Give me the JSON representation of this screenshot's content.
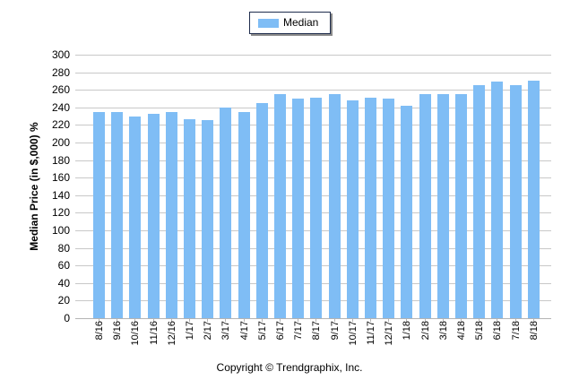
{
  "chart_data": {
    "type": "bar",
    "title": "",
    "xlabel": "",
    "ylabel": "Median Price (in $,000) %",
    "ylim": [
      0,
      300
    ],
    "yticks": [
      0,
      20,
      40,
      60,
      80,
      100,
      120,
      140,
      160,
      180,
      200,
      220,
      240,
      260,
      280,
      300
    ],
    "grid": true,
    "legend_position": "top",
    "categories": [
      "8/16",
      "9/16",
      "10/16",
      "11/16",
      "12/16",
      "1/17",
      "2/17",
      "3/17",
      "4/17",
      "5/17",
      "6/17",
      "7/17",
      "8/17",
      "9/17",
      "10/17",
      "11/17",
      "12/17",
      "1/18",
      "2/18",
      "3/18",
      "4/18",
      "5/18",
      "6/18",
      "7/18",
      "8/18"
    ],
    "series": [
      {
        "name": "Median",
        "color": "#7fbdf5",
        "values": [
          235,
          235,
          230,
          233,
          235,
          227,
          226,
          240,
          235,
          245,
          255,
          250,
          251,
          255,
          248,
          251,
          250,
          242,
          255,
          255,
          255,
          265,
          269,
          265,
          270
        ]
      }
    ]
  },
  "legend": {
    "label": "Median",
    "color": "#7fbdf5"
  },
  "axis": {
    "ylabel": "Median Price (in $,000) %"
  },
  "footer": {
    "copyright": "Copyright © Trendgraphix, Inc."
  }
}
